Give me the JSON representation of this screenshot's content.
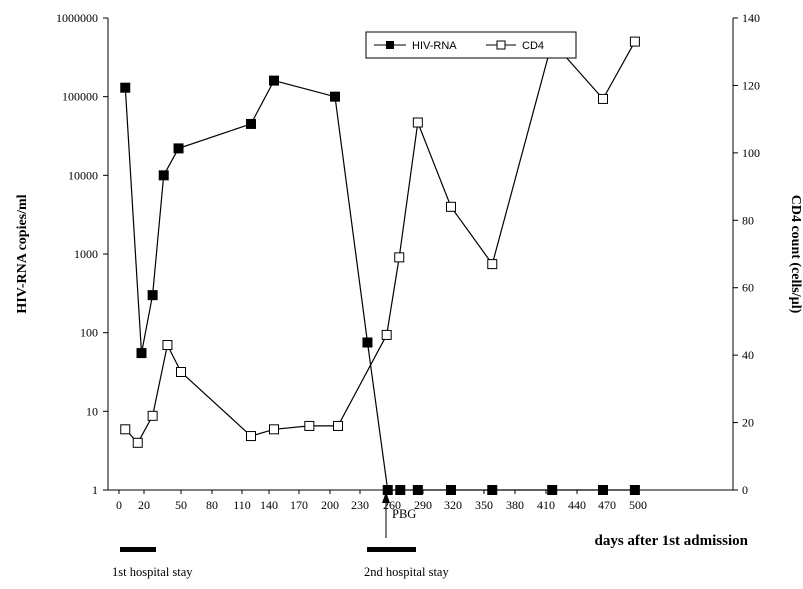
{
  "chart_data": {
    "type": "line",
    "xlabel": "days after 1st admission",
    "ylabel_left": "HIV-RNA copies/ml",
    "ylabel_right": "CD4 count (cells/µl)",
    "xlim": [
      0,
      500
    ],
    "ylim_left": [
      1,
      1000000
    ],
    "ylim_right": [
      0,
      140
    ],
    "left_scale": "log",
    "x_tick_labels": [
      "0",
      "20",
      "50",
      "80",
      "110",
      "140",
      "170",
      "200",
      "230",
      "260",
      "290",
      "320",
      "350",
      "380",
      "410",
      "440",
      "470",
      "500"
    ],
    "left_tick_labels": [
      "1",
      "10",
      "100",
      "1000",
      "10000",
      "100000",
      "1000000"
    ],
    "right_tick_labels": [
      "0",
      "20",
      "40",
      "60",
      "80",
      "100",
      "120",
      "140"
    ],
    "legend_position": "top-right",
    "series": [
      {
        "name": "HIV-RNA",
        "axis": "left",
        "marker": "filled-square",
        "x": [
          5,
          18,
          27,
          36,
          48,
          120,
          145,
          205,
          237,
          256,
          268,
          285,
          318,
          358,
          416,
          466,
          497
        ],
        "values": [
          130000,
          55,
          300,
          10000,
          22000,
          45000,
          160000,
          100000,
          75,
          1,
          1,
          1,
          1,
          1,
          1,
          1,
          1
        ]
      },
      {
        "name": "CD4",
        "axis": "right",
        "marker": "open-square",
        "x": [
          5,
          15,
          27,
          39,
          50,
          120,
          145,
          180,
          208,
          255,
          267,
          285,
          318,
          358,
          416,
          466,
          497
        ],
        "values": [
          18,
          14,
          22,
          43,
          35,
          16,
          18,
          19,
          19,
          46,
          69,
          109,
          84,
          67,
          133,
          116,
          133
        ]
      }
    ],
    "annotations": [
      {
        "text": "PBG",
        "x": 218
      },
      {
        "text": "1st hospital stay",
        "start": 2,
        "end": 32
      },
      {
        "text": "2nd hospital stay",
        "start": 206,
        "end": 244
      }
    ]
  }
}
